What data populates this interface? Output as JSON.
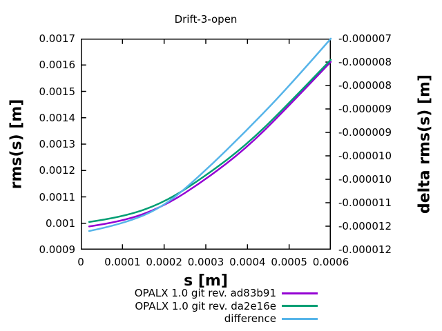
{
  "title": "Drift-3-open",
  "chart_data": {
    "type": "line",
    "title": "Drift-3-open",
    "xlabel": "s [m]",
    "ylabel_left": "rms(s) [m]",
    "ylabel_right": "delta rms(s) [m]",
    "xlim": [
      0,
      0.0006
    ],
    "ylim_left": [
      0.0009,
      0.0017
    ],
    "ylim_right": [
      -1.214e-05,
      -6.92e-06
    ],
    "grid": false,
    "legend_position": "below-plot-right",
    "x_tick_labels": [
      "0",
      "0.0001",
      "0.0002",
      "0.0003",
      "0.0004",
      "0.0005",
      "0.0006"
    ],
    "y_tick_labels_left": [
      "0.0017",
      "0.0016",
      "0.0015",
      "0.0014",
      "0.0013",
      "0.0012",
      "0.0011",
      "0.001",
      "0.0009"
    ],
    "y_tick_labels_right": [
      "-0.000007",
      "-0.000008",
      "-0.000008",
      "-0.000009",
      "-0.000009",
      "-0.000010",
      "-0.000010",
      "-0.000011",
      "-0.000012",
      "-0.000012"
    ],
    "series": [
      {
        "name": "OPALX 1.0 git rev. ad83b91",
        "color": "#9400d3",
        "axis": "left",
        "x": [
          2e-05,
          0.0001,
          0.0002,
          0.0003,
          0.0004,
          0.0005,
          0.0006
        ],
        "y": [
          0.000988,
          0.001006,
          0.001064,
          0.001166,
          0.001288,
          0.001446,
          0.001612
        ]
      },
      {
        "name": "OPALX 1.0 git rev. da2e16e",
        "color": "#009e73",
        "axis": "left",
        "x": [
          2e-05,
          0.0001,
          0.0002,
          0.0003,
          0.0004,
          0.0005,
          0.0006
        ],
        "y": [
          0.001005,
          0.001023,
          0.001078,
          0.00118,
          0.0013,
          0.001455,
          0.00162
        ]
      },
      {
        "name": "difference",
        "color": "#56b4e9",
        "axis": "right",
        "x": [
          2e-05,
          0.0001,
          0.0002,
          0.0003,
          0.0004,
          0.0005,
          0.0006
        ],
        "y": [
          -1.168e-05,
          -1.151e-05,
          -1.108e-05,
          -1.018e-05,
          -9.17e-06,
          -8.1e-06,
          -6.92e-06
        ]
      }
    ]
  },
  "legend": {
    "items": [
      {
        "label": "OPALX 1.0 git rev. ad83b91",
        "color": "#9400d3"
      },
      {
        "label": "OPALX 1.0 git rev. da2e16e",
        "color": "#009e73"
      },
      {
        "label": "difference",
        "color": "#56b4e9"
      }
    ]
  },
  "colors": {
    "axis": "#000000",
    "background": "#ffffff",
    "series_purple": "#9400d3",
    "series_green": "#009e73",
    "series_lightblue": "#56b4e9"
  }
}
